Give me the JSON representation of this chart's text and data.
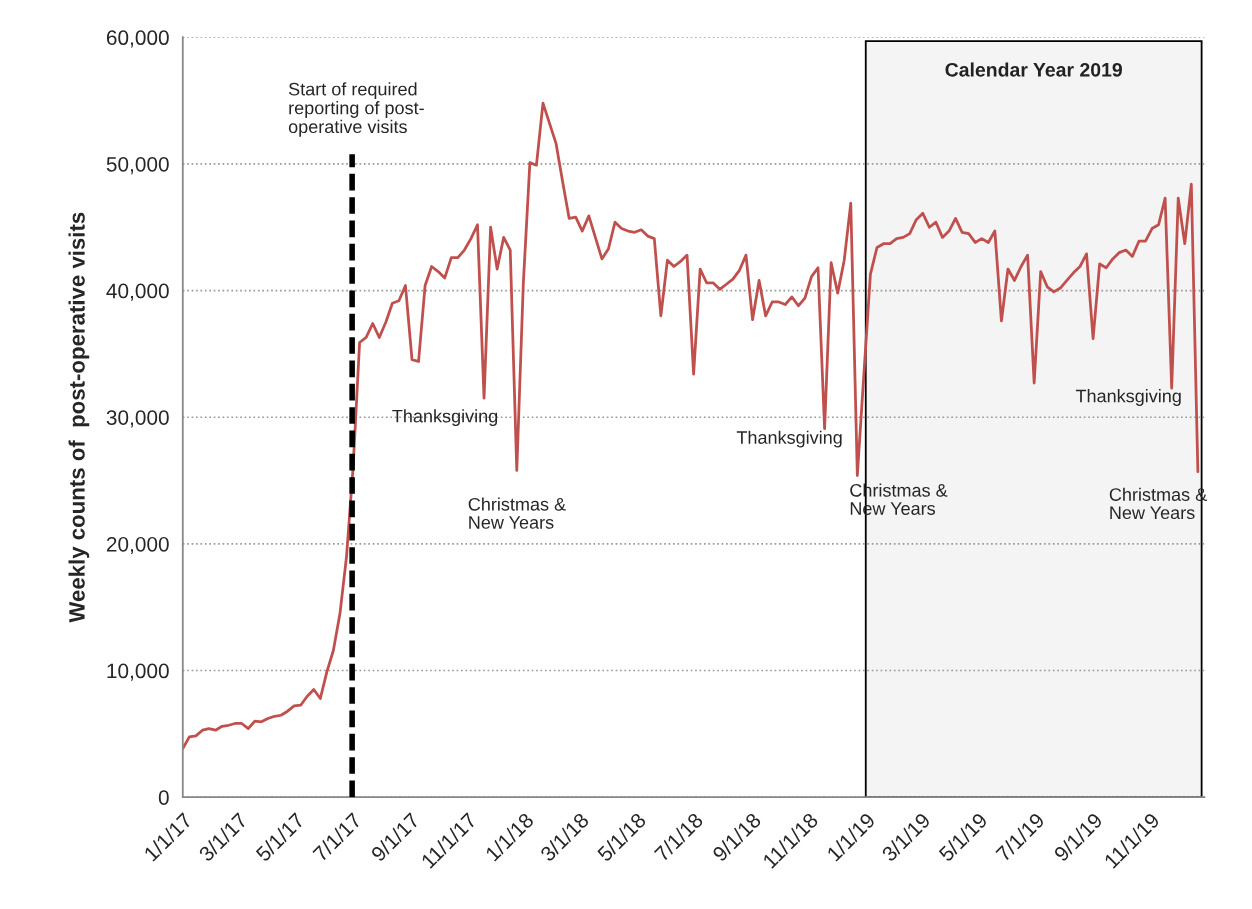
{
  "chart_data": {
    "type": "line",
    "ylabel": "Weekly counts of  post-operative visits",
    "x": [
      "2017-01-01",
      "2017-01-08",
      "2017-01-15",
      "2017-01-22",
      "2017-01-29",
      "2017-02-05",
      "2017-02-12",
      "2017-02-19",
      "2017-02-26",
      "2017-03-05",
      "2017-03-12",
      "2017-03-19",
      "2017-03-26",
      "2017-04-02",
      "2017-04-09",
      "2017-04-16",
      "2017-04-23",
      "2017-04-30",
      "2017-05-07",
      "2017-05-14",
      "2017-05-21",
      "2017-05-28",
      "2017-06-04",
      "2017-06-11",
      "2017-06-18",
      "2017-06-25",
      "2017-07-02",
      "2017-07-09",
      "2017-07-16",
      "2017-07-23",
      "2017-07-30",
      "2017-08-06",
      "2017-08-13",
      "2017-08-20",
      "2017-08-27",
      "2017-09-03",
      "2017-09-10",
      "2017-09-17",
      "2017-09-24",
      "2017-10-01",
      "2017-10-08",
      "2017-10-15",
      "2017-10-22",
      "2017-10-29",
      "2017-11-05",
      "2017-11-12",
      "2017-11-19",
      "2017-11-26",
      "2017-12-03",
      "2017-12-10",
      "2017-12-17",
      "2017-12-24",
      "2017-12-31",
      "2018-01-07",
      "2018-01-14",
      "2018-01-21",
      "2018-01-28",
      "2018-02-04",
      "2018-02-11",
      "2018-02-18",
      "2018-02-25",
      "2018-03-04",
      "2018-03-11",
      "2018-03-18",
      "2018-03-25",
      "2018-04-01",
      "2018-04-08",
      "2018-04-15",
      "2018-04-22",
      "2018-04-29",
      "2018-05-06",
      "2018-05-13",
      "2018-05-20",
      "2018-05-27",
      "2018-06-03",
      "2018-06-10",
      "2018-06-17",
      "2018-06-24",
      "2018-07-01",
      "2018-07-08",
      "2018-07-15",
      "2018-07-22",
      "2018-07-29",
      "2018-08-05",
      "2018-08-12",
      "2018-08-19",
      "2018-08-26",
      "2018-09-02",
      "2018-09-09",
      "2018-09-16",
      "2018-09-23",
      "2018-09-30",
      "2018-10-07",
      "2018-10-14",
      "2018-10-21",
      "2018-10-28",
      "2018-11-04",
      "2018-11-11",
      "2018-11-18",
      "2018-11-25",
      "2018-12-02",
      "2018-12-09",
      "2018-12-16",
      "2018-12-23",
      "2018-12-30",
      "2019-01-06",
      "2019-01-13",
      "2019-01-20",
      "2019-01-27",
      "2019-02-03",
      "2019-02-10",
      "2019-02-17",
      "2019-02-24",
      "2019-03-03",
      "2019-03-10",
      "2019-03-17",
      "2019-03-24",
      "2019-03-31",
      "2019-04-07",
      "2019-04-14",
      "2019-04-21",
      "2019-04-28",
      "2019-05-05",
      "2019-05-12",
      "2019-05-19",
      "2019-05-26",
      "2019-06-02",
      "2019-06-09",
      "2019-06-16",
      "2019-06-23",
      "2019-06-30",
      "2019-07-07",
      "2019-07-14",
      "2019-07-21",
      "2019-07-28",
      "2019-08-04",
      "2019-08-11",
      "2019-08-18",
      "2019-08-25",
      "2019-09-01",
      "2019-09-08",
      "2019-09-15",
      "2019-09-22",
      "2019-09-29",
      "2019-10-06",
      "2019-10-13",
      "2019-10-20",
      "2019-10-27",
      "2019-11-03",
      "2019-11-10",
      "2019-11-17",
      "2019-11-24",
      "2019-12-01",
      "2019-12-08",
      "2019-12-15",
      "2019-12-22"
    ],
    "series": [
      {
        "color": "#c0504d",
        "values": [
          3840,
          4760,
          4840,
          5290,
          5420,
          5290,
          5600,
          5680,
          5820,
          5820,
          5420,
          6000,
          5950,
          6210,
          6390,
          6470,
          6790,
          7210,
          7260,
          7970,
          8500,
          7790,
          9890,
          11600,
          14500,
          19000,
          26000,
          35900,
          36300,
          37400,
          36300,
          37500,
          39000,
          39200,
          40400,
          34550,
          34400,
          40400,
          41900,
          41500,
          41000,
          42600,
          42600,
          43200,
          44100,
          45200,
          31500,
          45000,
          41700,
          44200,
          43200,
          25800,
          40600,
          50100,
          49900,
          54800,
          53200,
          51600,
          48600,
          45700,
          45800,
          44700,
          45900,
          44200,
          42500,
          43300,
          45400,
          44900,
          44700,
          44600,
          44800,
          44300,
          44100,
          38000,
          42400,
          41900,
          42300,
          42800,
          33400,
          41700,
          40600,
          40600,
          40100,
          40500,
          40900,
          41600,
          42800,
          37700,
          40800,
          38000,
          39100,
          39100,
          38900,
          39500,
          38800,
          39400,
          41100,
          41800,
          29100,
          42200,
          39800,
          42400,
          46900,
          25400,
          33400,
          41300,
          43400,
          43700,
          43700,
          44100,
          44200,
          44500,
          45600,
          46100,
          45000,
          45400,
          44200,
          44700,
          45700,
          44600,
          44500,
          43800,
          44100,
          43800,
          44700,
          37600,
          41700,
          40800,
          41900,
          42800,
          32700,
          41500,
          40300,
          39900,
          40200,
          40800,
          41400,
          41900,
          42900,
          36200,
          42100,
          41800,
          42500,
          43000,
          43200,
          42700,
          43900,
          43900,
          44900,
          45200,
          47300,
          32300,
          47300,
          43700,
          48400,
          25700
        ]
      }
    ],
    "xlim": [
      "2017-01-01",
      "2019-12-29"
    ],
    "xticks": [
      {
        "value": "2017-01-01",
        "label": "1/1/17"
      },
      {
        "value": "2017-03-01",
        "label": "3/1/17"
      },
      {
        "value": "2017-05-01",
        "label": "5/1/17"
      },
      {
        "value": "2017-07-01",
        "label": "7/1/17"
      },
      {
        "value": "2017-09-01",
        "label": "9/1/17"
      },
      {
        "value": "2017-11-01",
        "label": "11/1/17"
      },
      {
        "value": "2018-01-01",
        "label": "1/1/18"
      },
      {
        "value": "2018-03-01",
        "label": "3/1/18"
      },
      {
        "value": "2018-05-01",
        "label": "5/1/18"
      },
      {
        "value": "2018-07-01",
        "label": "7/1/18"
      },
      {
        "value": "2018-09-01",
        "label": "9/1/18"
      },
      {
        "value": "2018-11-01",
        "label": "11/1/18"
      },
      {
        "value": "2019-01-01",
        "label": "1/1/19"
      },
      {
        "value": "2019-03-01",
        "label": "3/1/19"
      },
      {
        "value": "2019-05-01",
        "label": "5/1/19"
      },
      {
        "value": "2019-07-01",
        "label": "7/1/19"
      },
      {
        "value": "2019-09-01",
        "label": "9/1/19"
      },
      {
        "value": "2019-11-01",
        "label": "11/1/19"
      }
    ],
    "ylim": [
      0,
      60000
    ],
    "yticks": [
      0,
      {
        "value": 10000,
        "label": "10,000"
      },
      {
        "value": 20000,
        "label": "20,000"
      },
      {
        "value": 30000,
        "label": "30,000"
      },
      {
        "value": 40000,
        "label": "40,000"
      },
      {
        "value": 50000,
        "label": "50,000"
      },
      {
        "value": 60000,
        "label": "60,000"
      }
    ],
    "grid": "y",
    "marker": "none",
    "line_style": "solid",
    "legend": false,
    "ref_lines": [
      {
        "axis": "x",
        "value": "2017-07-01",
        "label": "Start of required\nreporting of post-\noperative visits",
        "color": "#000000",
        "line_style": "dashed"
      }
    ],
    "bands": [
      {
        "axis": "x",
        "from": "2019-01-01",
        "to": "2019-12-26",
        "label": "Calendar Year 2019",
        "color": "#f4f4f4"
      }
    ],
    "annotations": [
      {
        "text": "Thanksgiving",
        "x": "2017-11-19",
        "y": 31500
      },
      {
        "text": "Christmas &\nNew Years",
        "x": "2017-12-24",
        "y": 25800
      },
      {
        "text": "Thanksgiving",
        "x": "2018-11-18",
        "y": 29100
      },
      {
        "text": "Christmas &\nNew Years",
        "x": "2018-12-23",
        "y": 25400
      },
      {
        "text": "Thanksgiving",
        "x": "2019-11-24",
        "y": 32300
      },
      {
        "text": "Christmas &\nNew Years",
        "x": "2019-12-22",
        "y": 25700
      }
    ]
  }
}
